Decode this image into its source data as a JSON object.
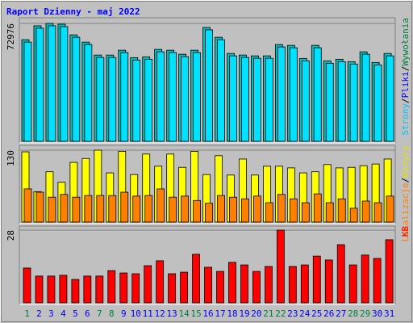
{
  "title": "Raport Dzienny -  maj 2022",
  "separator": "/",
  "chart_data": [
    {
      "type": "bar",
      "ylim": [
        0,
        72976
      ],
      "yticks": [
        72976
      ],
      "grid": true,
      "series": [
        {
          "name": "Wywołania",
          "color": "#00c0c0",
          "label_color": "#008040",
          "values": [
            62900,
            71500,
            72976,
            72500,
            65900,
            61400,
            53400,
            53400,
            56400,
            51800,
            52300,
            56900,
            56400,
            53900,
            56400,
            70500,
            64400,
            54400,
            53400,
            52900,
            52900,
            59900,
            59400,
            51300,
            59400,
            49800,
            50800,
            49300,
            55400,
            48800,
            54400
          ]
        },
        {
          "name": "Pliki",
          "color": "#00e0ff",
          "label_color": "#0000ff",
          "values": [
            61400,
            70000,
            71500,
            71000,
            64400,
            59900,
            51900,
            51900,
            54900,
            50300,
            50800,
            55400,
            54900,
            52400,
            54900,
            69000,
            62900,
            52900,
            51900,
            51400,
            51400,
            58400,
            57900,
            49800,
            57900,
            48300,
            49300,
            47800,
            53900,
            47300,
            52900
          ]
        }
      ],
      "extra_legend": {
        "name": "Strony",
        "label_color": "#00c0ff"
      }
    },
    {
      "type": "bar",
      "ylim": [
        0,
        130
      ],
      "yticks": [
        130
      ],
      "grid": true,
      "series": [
        {
          "name": "Wizyty",
          "color": "#ffff00",
          "label_color": "#e0e000",
          "values": [
            127,
            55,
            91,
            72,
            108,
            115,
            130,
            89,
            128,
            86,
            123,
            101,
            123,
            99,
            128,
            86,
            120,
            85,
            114,
            85,
            101,
            101,
            98,
            89,
            91,
            104,
            98,
            99,
            102,
            105,
            114
          ]
        },
        {
          "name": "Lokalizacje",
          "color": "#ff8000",
          "label_color": "#ff8000",
          "values": [
            60,
            54,
            45,
            50,
            45,
            48,
            48,
            48,
            54,
            47,
            48,
            60,
            45,
            47,
            39,
            34,
            48,
            45,
            42,
            47,
            35,
            50,
            42,
            35,
            51,
            35,
            42,
            25,
            38,
            35,
            47
          ]
        }
      ]
    },
    {
      "type": "bar",
      "ylim": [
        0,
        28
      ],
      "yticks": [
        28
      ],
      "grid": true,
      "categories": [
        "1",
        "2",
        "3",
        "4",
        "5",
        "6",
        "7",
        "8",
        "9",
        "10",
        "11",
        "12",
        "13",
        "14",
        "15",
        "16",
        "17",
        "18",
        "19",
        "20",
        "21",
        "22",
        "23",
        "24",
        "25",
        "26",
        "27",
        "28",
        "29",
        "30",
        "31"
      ],
      "category_colors": [
        "#008040",
        "#0000ff",
        "#0000ff",
        "#0000ff",
        "#0000ff",
        "#0000ff",
        "#008040",
        "#008040",
        "#0000ff",
        "#0000ff",
        "#0000ff",
        "#0000ff",
        "#0000ff",
        "#008040",
        "#008040",
        "#0000ff",
        "#0000ff",
        "#0000ff",
        "#0000ff",
        "#0000ff",
        "#008040",
        "#008040",
        "#0000ff",
        "#0000ff",
        "#0000ff",
        "#0000ff",
        "#0000ff",
        "#008040",
        "#008040",
        "#0000ff",
        "#0000ff"
      ],
      "series": [
        {
          "name": "KB",
          "color": "#ff0000",
          "label_color": "#ff0000",
          "values": [
            13.4,
            10.3,
            10.3,
            10.6,
            9.0,
            10.3,
            10.3,
            12.4,
            11.5,
            11.2,
            14.3,
            16.2,
            11.2,
            11.8,
            18.7,
            13.7,
            12.1,
            15.6,
            14.6,
            12.1,
            14.0,
            28,
            14.0,
            14.6,
            18.0,
            16.5,
            22.4,
            14.6,
            18.4,
            17.1,
            24.3
          ]
        }
      ]
    }
  ]
}
